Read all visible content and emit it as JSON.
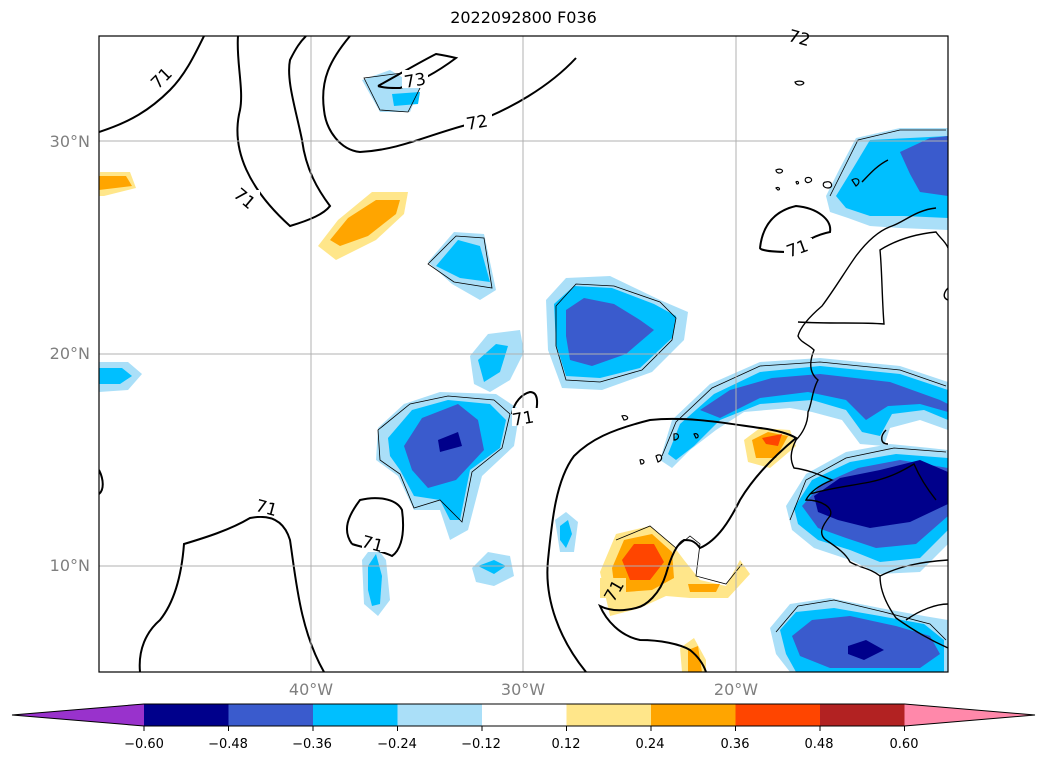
{
  "title": "2022092800 F036",
  "lat_labels": [
    "30°N",
    "20°N",
    "10°N"
  ],
  "lon_labels": [
    "40°W",
    "30°W",
    "20°W"
  ],
  "contour_labels": [
    "71",
    "71",
    "73",
    "72",
    "71",
    "71",
    "71",
    "71",
    "71",
    "72"
  ],
  "colorbar": {
    "ticks": [
      "−0.60",
      "−0.48",
      "−0.36",
      "−0.24",
      "−0.12",
      "0.12",
      "0.24",
      "0.36",
      "0.48",
      "0.60"
    ],
    "colors": [
      "#9932cc",
      "#00008b",
      "#3a5bcd",
      "#00bfff",
      "#aadff8",
      "#ffffff",
      "#ffe68a",
      "#ffa500",
      "#ff4500",
      "#b22222",
      "#ff88aa"
    ]
  },
  "colors": {
    "dark_blue": "#00008b",
    "blue": "#3a5bcd",
    "sky": "#00bfff",
    "light_sky": "#aadff8",
    "light_yellow": "#ffe68a",
    "orange": "#ffa500",
    "red_orange": "#ff4500"
  }
}
